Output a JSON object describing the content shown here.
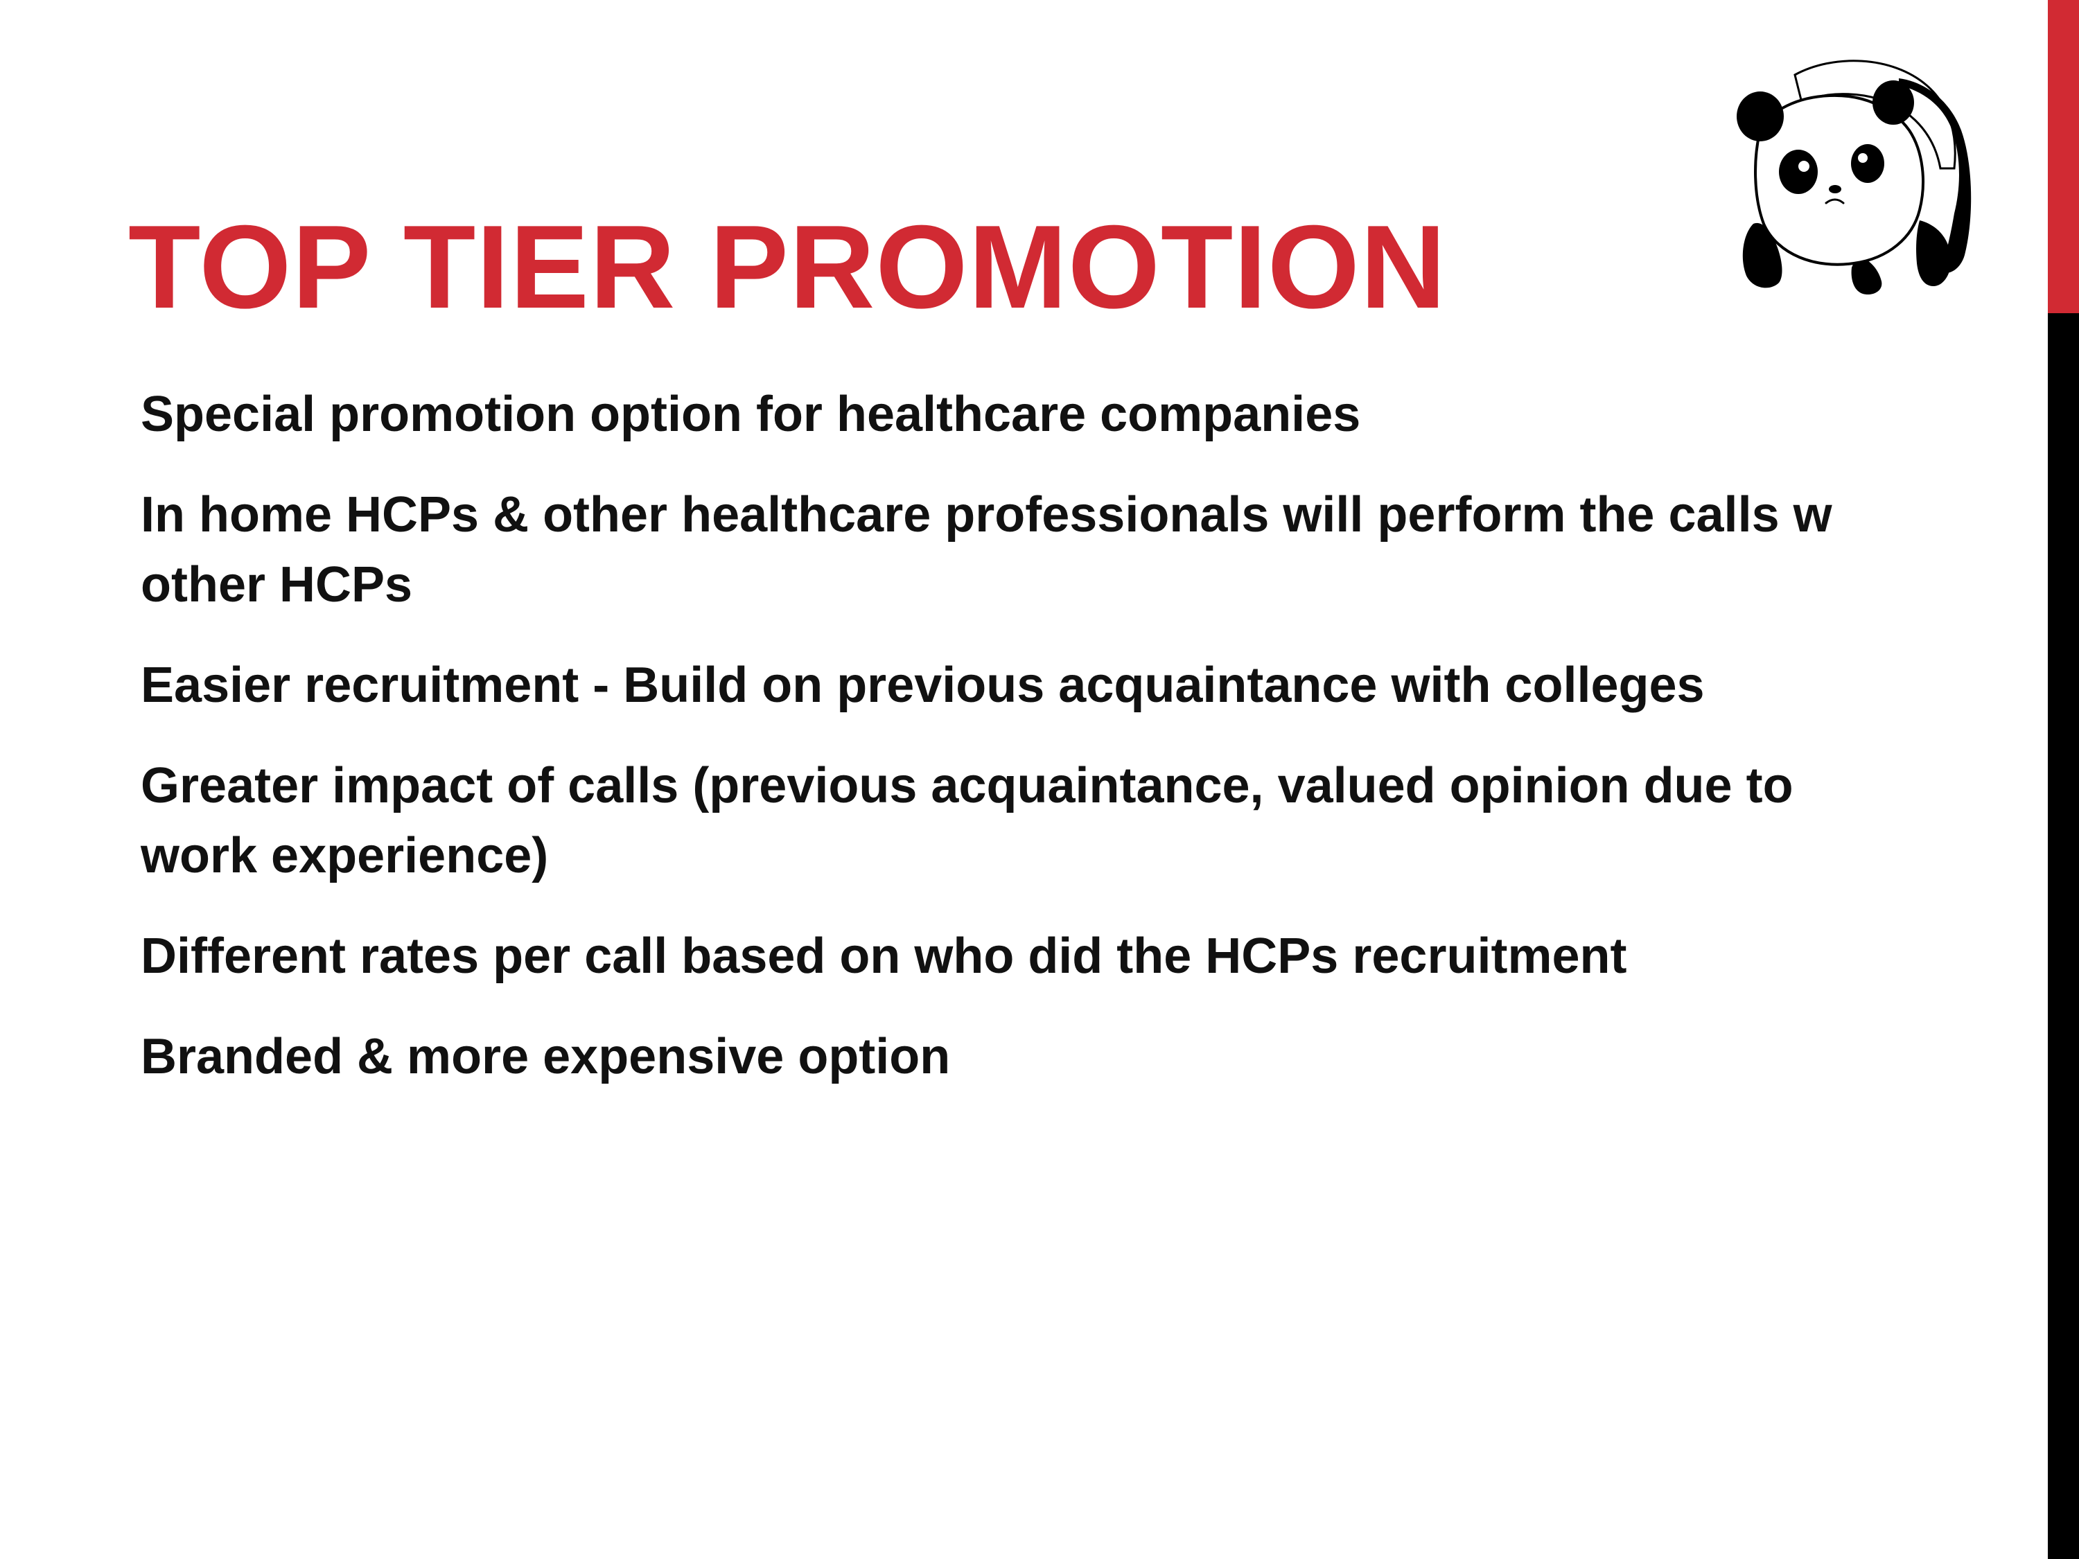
{
  "slide": {
    "title": "TOP TIER PROMOTION",
    "bullets": [
      "Special promotion option for healthcare companies",
      "In home HCPs & other healthcare professionals will perform the calls w other HCPs",
      "Easier recruitment  - Build on previous acquaintance with colleges",
      "Greater impact of calls (previous acquaintance, valued opinion due to work experience)",
      "Different rates per call based on who did the HCPs recruitment",
      "Branded & more expensive option"
    ],
    "panda_illustration": "panda-icon"
  },
  "colors": {
    "accent_red": "#d12a33",
    "accent_black": "#000000",
    "text": "#111111",
    "background": "#ffffff"
  }
}
